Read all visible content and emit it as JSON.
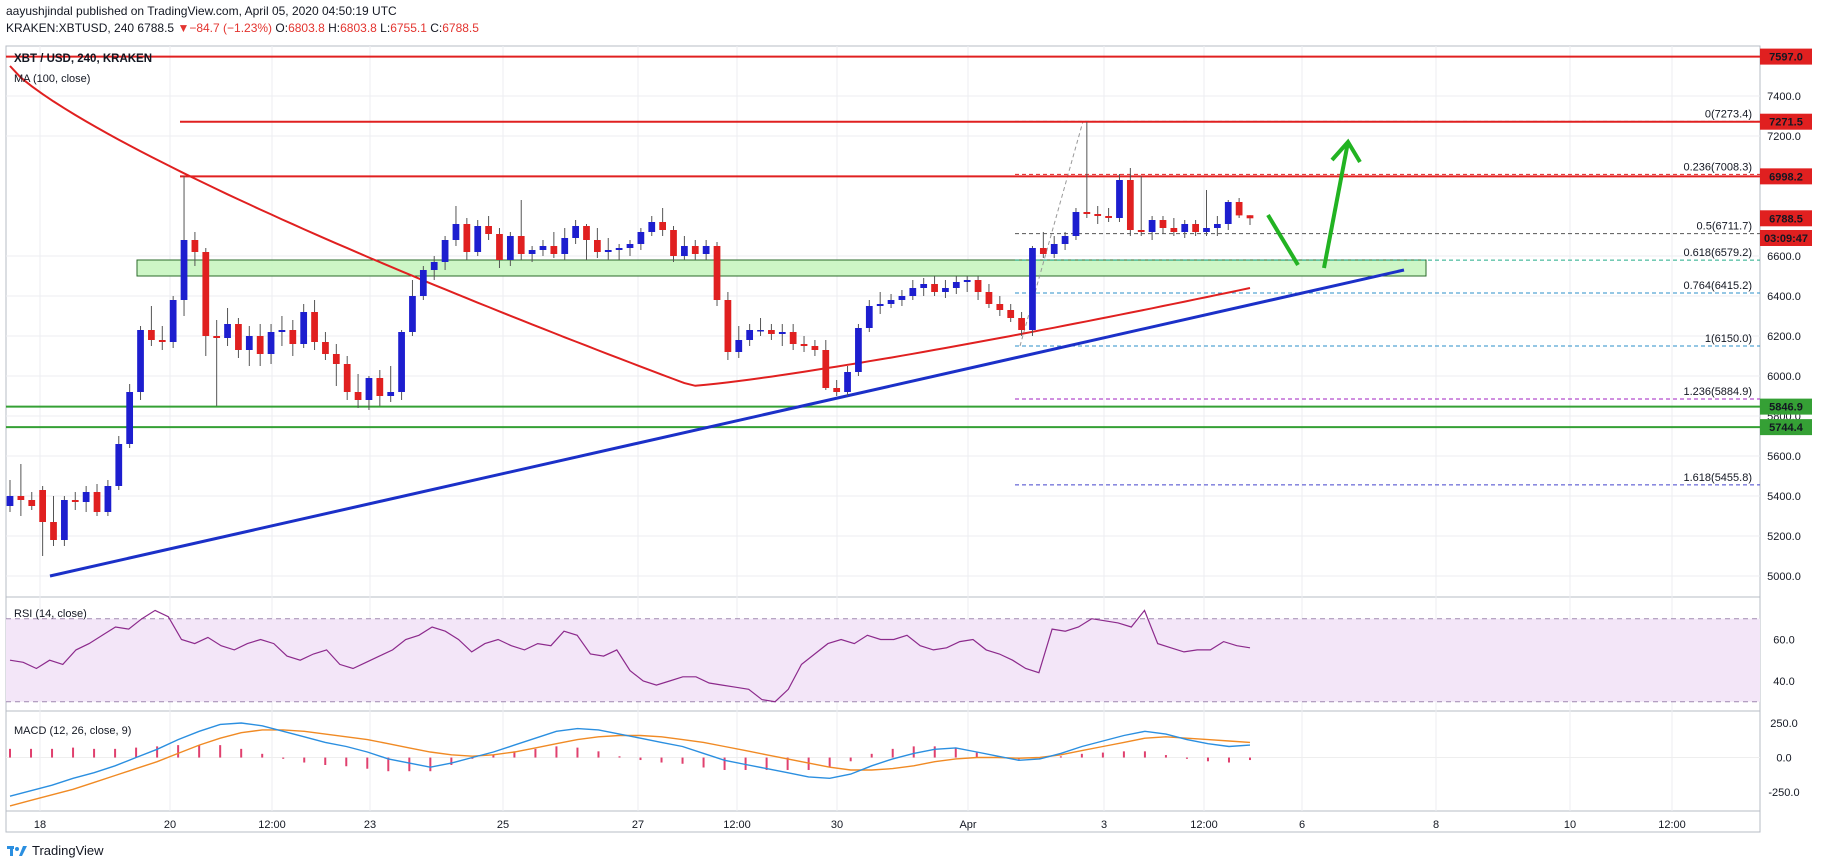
{
  "header": {
    "publisher_line": "aayushjindal published on TradingView.com, April 05, 2020 04:50:19 UTC",
    "symbol_line": "KRAKEN:XBTUSD, 240",
    "last": "6788.5",
    "change_arrow": "▼",
    "change": "−84.7 (−1.23%)",
    "ohlc": [
      {
        "label": "O:",
        "value": "6803.8"
      },
      {
        "label": "H:",
        "value": "6803.8"
      },
      {
        "label": "L:",
        "value": "6755.1"
      },
      {
        "label": "C:",
        "value": "6788.5"
      }
    ]
  },
  "legend": {
    "title": "XBT / USD, 240, KRAKEN",
    "ma": "MA (100, close)"
  },
  "footer": {
    "brand": "TradingView",
    "logo_icon": "tradingview-logo-icon"
  },
  "colors": {
    "up": "#1d1ecf",
    "down": "#e02020",
    "ma": "#e02020",
    "trend": "#1b30c8",
    "support_zone": "#c8f5c0",
    "support_line": "#35a035",
    "arrow": "#22b322",
    "rsi": "#8c2a8c",
    "macd": "#2b8fe0",
    "signal": "#f08a24",
    "hist": "#e0406e"
  },
  "chart_data": [
    {
      "type": "candlestick",
      "title": "XBT / USD, 240, KRAKEN",
      "x_ticks": [
        "18",
        "20",
        "12:00",
        "23",
        "25",
        "27",
        "12:00",
        "30",
        "Apr",
        "3",
        "12:00",
        "6",
        "8",
        "10",
        "12:00"
      ],
      "y_ticks": [
        5000,
        5200,
        5400,
        5600,
        5800,
        6000,
        6200,
        6400,
        6600,
        7200,
        7400
      ],
      "ylim": [
        4900,
        7650
      ],
      "moving_average": {
        "name": "MA (100, close)",
        "start": 7550,
        "end": 6440
      },
      "candles": [
        {
          "o": 5350,
          "h": 5480,
          "l": 5320,
          "c": 5400
        },
        {
          "o": 5400,
          "h": 5560,
          "l": 5300,
          "c": 5380
        },
        {
          "o": 5380,
          "h": 5420,
          "l": 5330,
          "c": 5350
        },
        {
          "o": 5430,
          "h": 5450,
          "l": 5100,
          "c": 5270
        },
        {
          "o": 5270,
          "h": 5400,
          "l": 5150,
          "c": 5180
        },
        {
          "o": 5180,
          "h": 5400,
          "l": 5150,
          "c": 5380
        },
        {
          "o": 5380,
          "h": 5420,
          "l": 5330,
          "c": 5370
        },
        {
          "o": 5370,
          "h": 5450,
          "l": 5320,
          "c": 5420
        },
        {
          "o": 5420,
          "h": 5460,
          "l": 5300,
          "c": 5320
        },
        {
          "o": 5320,
          "h": 5480,
          "l": 5300,
          "c": 5450
        },
        {
          "o": 5450,
          "h": 5700,
          "l": 5430,
          "c": 5660
        },
        {
          "o": 5660,
          "h": 5960,
          "l": 5640,
          "c": 5920
        },
        {
          "o": 5920,
          "h": 6250,
          "l": 5880,
          "c": 6230
        },
        {
          "o": 6230,
          "h": 6350,
          "l": 6150,
          "c": 6180
        },
        {
          "o": 6180,
          "h": 6250,
          "l": 6130,
          "c": 6170
        },
        {
          "o": 6170,
          "h": 6400,
          "l": 6140,
          "c": 6380
        },
        {
          "o": 6380,
          "h": 7000,
          "l": 6300,
          "c": 6680
        },
        {
          "o": 6680,
          "h": 6720,
          "l": 6550,
          "c": 6620
        },
        {
          "o": 6620,
          "h": 6640,
          "l": 6100,
          "c": 6200
        },
        {
          "o": 6200,
          "h": 6280,
          "l": 5850,
          "c": 6190
        },
        {
          "o": 6190,
          "h": 6340,
          "l": 6150,
          "c": 6260
        },
        {
          "o": 6260,
          "h": 6290,
          "l": 6090,
          "c": 6130
        },
        {
          "o": 6130,
          "h": 6250,
          "l": 6050,
          "c": 6200
        },
        {
          "o": 6200,
          "h": 6260,
          "l": 6050,
          "c": 6110
        },
        {
          "o": 6110,
          "h": 6260,
          "l": 6060,
          "c": 6220
        },
        {
          "o": 6220,
          "h": 6300,
          "l": 6150,
          "c": 6230
        },
        {
          "o": 6230,
          "h": 6280,
          "l": 6100,
          "c": 6160
        },
        {
          "o": 6160,
          "h": 6360,
          "l": 6140,
          "c": 6320
        },
        {
          "o": 6320,
          "h": 6380,
          "l": 6130,
          "c": 6170
        },
        {
          "o": 6170,
          "h": 6220,
          "l": 6080,
          "c": 6110
        },
        {
          "o": 6110,
          "h": 6160,
          "l": 5950,
          "c": 6060
        },
        {
          "o": 6060,
          "h": 6100,
          "l": 5880,
          "c": 5920
        },
        {
          "o": 5920,
          "h": 6010,
          "l": 5840,
          "c": 5880
        },
        {
          "o": 5880,
          "h": 6000,
          "l": 5830,
          "c": 5990
        },
        {
          "o": 5990,
          "h": 6030,
          "l": 5850,
          "c": 5900
        },
        {
          "o": 5900,
          "h": 6050,
          "l": 5870,
          "c": 5920
        },
        {
          "o": 5920,
          "h": 6230,
          "l": 5880,
          "c": 6220
        },
        {
          "o": 6220,
          "h": 6480,
          "l": 6200,
          "c": 6400
        },
        {
          "o": 6400,
          "h": 6550,
          "l": 6380,
          "c": 6530
        },
        {
          "o": 6530,
          "h": 6600,
          "l": 6480,
          "c": 6570
        },
        {
          "o": 6570,
          "h": 6700,
          "l": 6530,
          "c": 6680
        },
        {
          "o": 6680,
          "h": 6850,
          "l": 6650,
          "c": 6760
        },
        {
          "o": 6760,
          "h": 6790,
          "l": 6580,
          "c": 6620
        },
        {
          "o": 6620,
          "h": 6780,
          "l": 6600,
          "c": 6750
        },
        {
          "o": 6750,
          "h": 6800,
          "l": 6680,
          "c": 6710
        },
        {
          "o": 6710,
          "h": 6740,
          "l": 6540,
          "c": 6580
        },
        {
          "o": 6580,
          "h": 6720,
          "l": 6550,
          "c": 6700
        },
        {
          "o": 6700,
          "h": 6880,
          "l": 6580,
          "c": 6610
        },
        {
          "o": 6610,
          "h": 6650,
          "l": 6570,
          "c": 6630
        },
        {
          "o": 6630,
          "h": 6680,
          "l": 6600,
          "c": 6650
        },
        {
          "o": 6650,
          "h": 6720,
          "l": 6590,
          "c": 6610
        },
        {
          "o": 6610,
          "h": 6740,
          "l": 6580,
          "c": 6690
        },
        {
          "o": 6690,
          "h": 6780,
          "l": 6660,
          "c": 6750
        },
        {
          "o": 6750,
          "h": 6760,
          "l": 6580,
          "c": 6680
        },
        {
          "o": 6680,
          "h": 6740,
          "l": 6590,
          "c": 6620
        },
        {
          "o": 6620,
          "h": 6690,
          "l": 6580,
          "c": 6630
        },
        {
          "o": 6630,
          "h": 6660,
          "l": 6580,
          "c": 6640
        },
        {
          "o": 6640,
          "h": 6680,
          "l": 6600,
          "c": 6660
        },
        {
          "o": 6660,
          "h": 6740,
          "l": 6630,
          "c": 6720
        },
        {
          "o": 6720,
          "h": 6800,
          "l": 6700,
          "c": 6770
        },
        {
          "o": 6770,
          "h": 6840,
          "l": 6700,
          "c": 6730
        },
        {
          "o": 6730,
          "h": 6750,
          "l": 6570,
          "c": 6600
        },
        {
          "o": 6600,
          "h": 6700,
          "l": 6580,
          "c": 6650
        },
        {
          "o": 6650,
          "h": 6680,
          "l": 6580,
          "c": 6610
        },
        {
          "o": 6610,
          "h": 6680,
          "l": 6580,
          "c": 6650
        },
        {
          "o": 6650,
          "h": 6670,
          "l": 6350,
          "c": 6380
        },
        {
          "o": 6380,
          "h": 6420,
          "l": 6080,
          "c": 6120
        },
        {
          "o": 6120,
          "h": 6250,
          "l": 6090,
          "c": 6180
        },
        {
          "o": 6180,
          "h": 6260,
          "l": 6150,
          "c": 6230
        },
        {
          "o": 6230,
          "h": 6290,
          "l": 6200,
          "c": 6230
        },
        {
          "o": 6230,
          "h": 6260,
          "l": 6180,
          "c": 6210
        },
        {
          "o": 6210,
          "h": 6260,
          "l": 6150,
          "c": 6220
        },
        {
          "o": 6220,
          "h": 6260,
          "l": 6130,
          "c": 6160
        },
        {
          "o": 6160,
          "h": 6200,
          "l": 6120,
          "c": 6150
        },
        {
          "o": 6150,
          "h": 6180,
          "l": 6100,
          "c": 6130
        },
        {
          "o": 6130,
          "h": 6180,
          "l": 5930,
          "c": 5940
        },
        {
          "o": 5940,
          "h": 5980,
          "l": 5900,
          "c": 5920
        },
        {
          "o": 5920,
          "h": 6050,
          "l": 5900,
          "c": 6020
        },
        {
          "o": 6020,
          "h": 6260,
          "l": 6000,
          "c": 6240
        },
        {
          "o": 6240,
          "h": 6380,
          "l": 6220,
          "c": 6350
        },
        {
          "o": 6350,
          "h": 6420,
          "l": 6310,
          "c": 6360
        },
        {
          "o": 6360,
          "h": 6410,
          "l": 6340,
          "c": 6380
        },
        {
          "o": 6380,
          "h": 6430,
          "l": 6350,
          "c": 6400
        },
        {
          "o": 6400,
          "h": 6480,
          "l": 6380,
          "c": 6440
        },
        {
          "o": 6440,
          "h": 6490,
          "l": 6400,
          "c": 6460
        },
        {
          "o": 6460,
          "h": 6500,
          "l": 6400,
          "c": 6420
        },
        {
          "o": 6420,
          "h": 6480,
          "l": 6390,
          "c": 6440
        },
        {
          "o": 6440,
          "h": 6500,
          "l": 6410,
          "c": 6470
        },
        {
          "o": 6470,
          "h": 6500,
          "l": 6420,
          "c": 6480
        },
        {
          "o": 6480,
          "h": 6500,
          "l": 6380,
          "c": 6420
        },
        {
          "o": 6420,
          "h": 6460,
          "l": 6340,
          "c": 6360
        },
        {
          "o": 6360,
          "h": 6400,
          "l": 6300,
          "c": 6330
        },
        {
          "o": 6330,
          "h": 6360,
          "l": 6270,
          "c": 6290
        },
        {
          "o": 6290,
          "h": 6320,
          "l": 6200,
          "c": 6230
        },
        {
          "o": 6230,
          "h": 6650,
          "l": 6200,
          "c": 6640
        },
        {
          "o": 6640,
          "h": 6720,
          "l": 6590,
          "c": 6610
        },
        {
          "o": 6610,
          "h": 6700,
          "l": 6590,
          "c": 6660
        },
        {
          "o": 6660,
          "h": 6720,
          "l": 6630,
          "c": 6700
        },
        {
          "o": 6700,
          "h": 6840,
          "l": 6680,
          "c": 6820
        },
        {
          "o": 6820,
          "h": 7270,
          "l": 6790,
          "c": 6810
        },
        {
          "o": 6810,
          "h": 6850,
          "l": 6760,
          "c": 6800
        },
        {
          "o": 6800,
          "h": 6840,
          "l": 6770,
          "c": 6790
        },
        {
          "o": 6790,
          "h": 7010,
          "l": 6770,
          "c": 6980
        },
        {
          "o": 6980,
          "h": 7040,
          "l": 6700,
          "c": 6730
        },
        {
          "o": 6730,
          "h": 7000,
          "l": 6700,
          "c": 6720
        },
        {
          "o": 6720,
          "h": 6800,
          "l": 6680,
          "c": 6780
        },
        {
          "o": 6780,
          "h": 6800,
          "l": 6710,
          "c": 6740
        },
        {
          "o": 6740,
          "h": 6790,
          "l": 6700,
          "c": 6720
        },
        {
          "o": 6720,
          "h": 6780,
          "l": 6690,
          "c": 6760
        },
        {
          "o": 6760,
          "h": 6780,
          "l": 6700,
          "c": 6720
        },
        {
          "o": 6720,
          "h": 6930,
          "l": 6700,
          "c": 6740
        },
        {
          "o": 6740,
          "h": 6800,
          "l": 6700,
          "c": 6760
        },
        {
          "o": 6760,
          "h": 6880,
          "l": 6730,
          "c": 6870
        },
        {
          "o": 6870,
          "h": 6890,
          "l": 6790,
          "c": 6803
        },
        {
          "o": 6803.8,
          "h": 6803.8,
          "l": 6755.1,
          "c": 6788.5
        }
      ],
      "horizontal_levels": [
        {
          "value": 7597.0,
          "label": "7597.0",
          "color": "#e02020"
        },
        {
          "value": 7271.5,
          "label": "7271.5",
          "color": "#e02020"
        },
        {
          "value": 6998.2,
          "label": "6998.2",
          "color": "#e02020"
        },
        {
          "value": 5846.9,
          "label": "5846.9",
          "color": "#35a035"
        },
        {
          "value": 5744.4,
          "label": "5744.4",
          "color": "#35a035"
        }
      ],
      "price_tags": [
        {
          "value": 6788.5,
          "label": "6788.5",
          "color": "#e02020"
        },
        {
          "value": 6690,
          "label": "03:09:47",
          "color": "#e02020"
        }
      ],
      "support_zone": [
        6500,
        6580
      ],
      "fibonacci": [
        {
          "ratio": "0",
          "price": "7273.4",
          "value": 7273.4,
          "color": "#8a8a8a"
        },
        {
          "ratio": "0.236",
          "price": "7008.3",
          "value": 7008.3,
          "color": "#e02020"
        },
        {
          "ratio": "0.5",
          "price": "6711.7",
          "value": 6711.7,
          "color": "#555555"
        },
        {
          "ratio": "0.618",
          "price": "6579.2",
          "value": 6579.2,
          "color": "#22aa88"
        },
        {
          "ratio": "0.764",
          "price": "6415.2",
          "value": 6415.2,
          "color": "#2b8fc8"
        },
        {
          "ratio": "1",
          "price": "6150.0",
          "value": 6150.0,
          "color": "#2b8fc8"
        },
        {
          "ratio": "1.236",
          "price": "5884.9",
          "value": 5884.9,
          "color": "#a020c0"
        },
        {
          "ratio": "1.618",
          "price": "5455.8",
          "value": 5455.8,
          "color": "#4444cc"
        }
      ]
    },
    {
      "type": "line",
      "title": "RSI (14, close)",
      "y_ticks": [
        60,
        40
      ],
      "ylim": [
        26,
        80
      ],
      "band": [
        30,
        70
      ],
      "values": [
        50,
        49,
        46,
        50,
        48,
        55,
        58,
        62,
        66,
        65,
        70,
        74,
        71,
        60,
        58,
        61,
        57,
        55,
        58,
        60,
        58,
        52,
        50,
        53,
        55,
        48,
        46,
        49,
        52,
        55,
        60,
        62,
        66,
        64,
        60,
        54,
        58,
        60,
        57,
        55,
        58,
        57,
        64,
        62,
        53,
        52,
        55,
        45,
        40,
        38,
        40,
        42,
        42,
        39,
        38,
        37,
        36,
        31,
        30,
        36,
        48,
        53,
        58,
        60,
        58,
        62,
        60,
        60,
        62,
        57,
        55,
        56,
        59,
        60,
        55,
        53,
        50,
        46,
        44,
        65,
        64,
        66,
        70,
        69,
        68,
        66,
        74,
        58,
        56,
        54,
        55,
        55,
        59,
        57,
        56
      ]
    },
    {
      "type": "line",
      "title": "MACD (12, 26, close, 9)",
      "y_ticks": [
        250.0,
        0.0,
        -250.0
      ],
      "ylim": [
        -380,
        330
      ],
      "series": [
        {
          "name": "MACD",
          "values": [
            -280,
            -240,
            -200,
            -150,
            -110,
            -60,
            0,
            60,
            130,
            190,
            240,
            250,
            230,
            190,
            150,
            110,
            80,
            40,
            -10,
            -40,
            -70,
            -40,
            0,
            40,
            90,
            140,
            190,
            210,
            200,
            170,
            140,
            110,
            80,
            30,
            -20,
            -50,
            -80,
            -110,
            -140,
            -150,
            -120,
            -60,
            -10,
            30,
            60,
            70,
            40,
            10,
            -20,
            -10,
            30,
            80,
            120,
            160,
            190,
            170,
            130,
            100,
            80,
            90
          ]
        },
        {
          "name": "Signal",
          "values": [
            -350,
            -310,
            -270,
            -230,
            -180,
            -130,
            -80,
            -30,
            30,
            90,
            140,
            180,
            200,
            200,
            190,
            170,
            150,
            130,
            100,
            70,
            40,
            20,
            10,
            20,
            40,
            70,
            100,
            130,
            150,
            160,
            160,
            150,
            130,
            110,
            80,
            50,
            20,
            -10,
            -40,
            -70,
            -90,
            -90,
            -80,
            -60,
            -30,
            -10,
            0,
            0,
            -5,
            0,
            20,
            50,
            80,
            110,
            140,
            150,
            140,
            130,
            120,
            110
          ]
        }
      ]
    }
  ]
}
